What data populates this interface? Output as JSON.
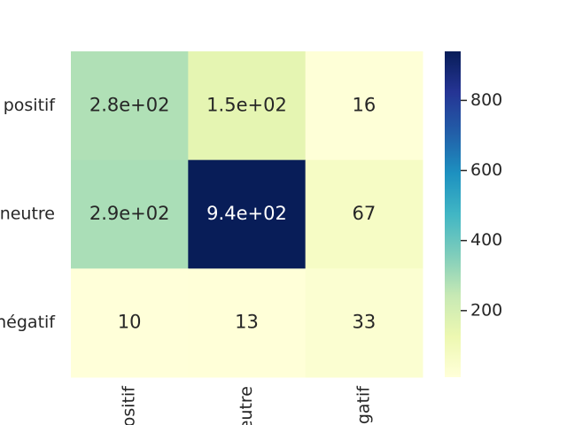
{
  "chart_data": {
    "type": "heatmap",
    "x_categories": [
      "positif",
      "neutre",
      "négatif"
    ],
    "y_categories": [
      "positif",
      "neutre",
      "négatif"
    ],
    "values": [
      [
        280,
        150,
        16
      ],
      [
        290,
        940,
        67
      ],
      [
        10,
        13,
        33
      ]
    ],
    "value_labels": [
      [
        "2.8e+02",
        "1.5e+02",
        "16"
      ],
      [
        "2.9e+02",
        "9.4e+02",
        "67"
      ],
      [
        "10",
        "13",
        "33"
      ]
    ],
    "colormap": [
      "#ffffd9",
      "#edf8b1",
      "#c7e9b4",
      "#7fcdbb",
      "#41b6c4",
      "#1d91c0",
      "#225ea8",
      "#253494",
      "#081d58"
    ],
    "clim": [
      10,
      940
    ],
    "cticks": [
      200,
      400,
      600,
      800
    ]
  }
}
